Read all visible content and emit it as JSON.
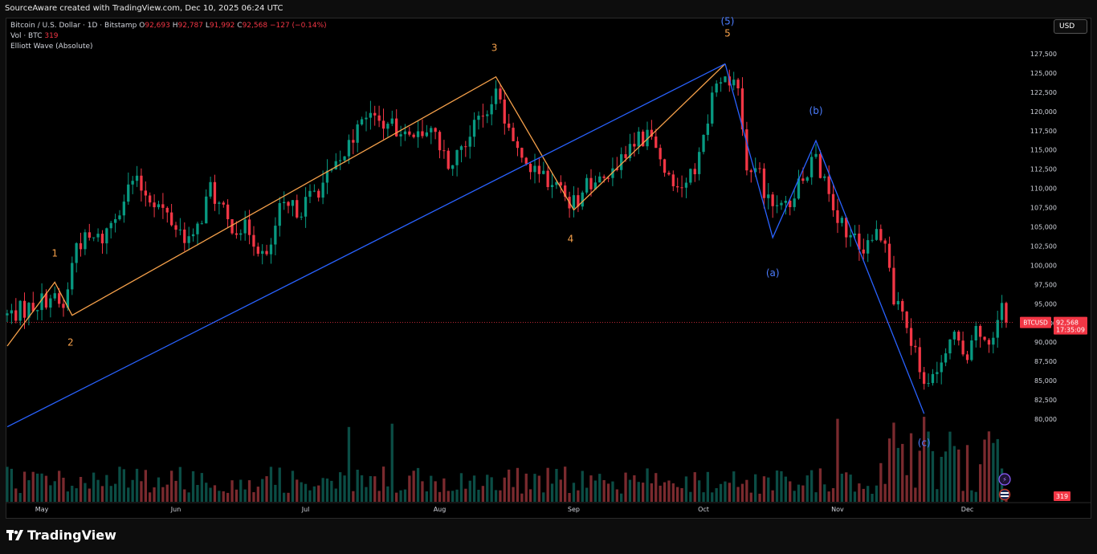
{
  "header": {
    "source_text": "SourceAware created with TradingView.com, Dec 10, 2025 06:24 UTC"
  },
  "legend": {
    "symbol": "Bitcoin / U.S. Dollar · 1D · Bitstamp",
    "open_label": "O",
    "open": "92,693",
    "high_label": "H",
    "high": "92,787",
    "low_label": "L",
    "low": "91,992",
    "close_label": "C",
    "close": "92,568",
    "change": "−127 (−0.14%)",
    "volume_label": "Vol · BTC",
    "volume": "319",
    "indicator": "Elliott Wave (Absolute)"
  },
  "currency_button": "USD",
  "price_tag": {
    "symbol": "BTCUSD",
    "price": "92,568",
    "countdown": "17:35:09"
  },
  "volume_tag": "319",
  "footer": {
    "brand": "TradingView"
  },
  "colors": {
    "up": "#089981",
    "down": "#f23645",
    "up_vol": "#0b4d45",
    "down_vol": "#7a2a2e",
    "wave_orange": "#f5a04a",
    "wave_blue": "#2962ff",
    "label_blue": "#4c7dff"
  },
  "chart_data": {
    "type": "candlestick",
    "title": "Bitcoin / U.S. Dollar · 1D · Bitstamp",
    "y_axis": {
      "ticks": [
        80000,
        82500,
        85000,
        87500,
        90000,
        92500,
        95000,
        97500,
        100000,
        102500,
        105000,
        107500,
        110000,
        112500,
        115000,
        117500,
        120000,
        122500,
        125000,
        127500
      ],
      "tick_labels": [
        "80,000",
        "82,500",
        "85,000",
        "87,500",
        "90,000",
        "92,500",
        "95,000",
        "97,500",
        "100,000",
        "102,500",
        "105,000",
        "107,500",
        "110,000",
        "112,500",
        "115,000",
        "117,500",
        "120,000",
        "122,500",
        "125,000",
        "127,500"
      ],
      "range": [
        70000,
        130000
      ],
      "side": "right"
    },
    "x_axis": {
      "labels": [
        "May",
        "Jun",
        "Jul",
        "Aug",
        "Sep",
        "Oct",
        "Nov",
        "Dec"
      ],
      "label_dates": [
        "2025-05-01",
        "2025-06-01",
        "2025-07-01",
        "2025-08-01",
        "2025-09-01",
        "2025-10-01",
        "2025-11-01",
        "2025-12-01"
      ],
      "range": [
        "2025-04-23",
        "2025-12-10"
      ]
    },
    "price_points": [
      [
        "2025-04-23",
        93500
      ],
      [
        "2025-04-28",
        94500
      ],
      [
        "2025-05-03",
        96000
      ],
      [
        "2025-05-06",
        94200
      ],
      [
        "2025-05-09",
        103000
      ],
      [
        "2025-05-15",
        103500
      ],
      [
        "2025-05-22",
        111000
      ],
      [
        "2025-05-27",
        108500
      ],
      [
        "2025-06-01",
        105000
      ],
      [
        "2025-06-05",
        103000
      ],
      [
        "2025-06-09",
        110000
      ],
      [
        "2025-06-13",
        105500
      ],
      [
        "2025-06-18",
        104500
      ],
      [
        "2025-06-22",
        100500
      ],
      [
        "2025-06-25",
        107000
      ],
      [
        "2025-06-30",
        107500
      ],
      [
        "2025-07-03",
        109500
      ],
      [
        "2025-07-09",
        113000
      ],
      [
        "2025-07-14",
        120000
      ],
      [
        "2025-07-20",
        118000
      ],
      [
        "2025-07-25",
        117000
      ],
      [
        "2025-07-30",
        118000
      ],
      [
        "2025-08-03",
        113500
      ],
      [
        "2025-08-08",
        117500
      ],
      [
        "2025-08-14",
        122000
      ],
      [
        "2025-08-18",
        116000
      ],
      [
        "2025-08-22",
        113000
      ],
      [
        "2025-08-27",
        111000
      ],
      [
        "2025-09-01",
        108000
      ],
      [
        "2025-09-05",
        111000
      ],
      [
        "2025-09-10",
        112000
      ],
      [
        "2025-09-14",
        115500
      ],
      [
        "2025-09-18",
        117000
      ],
      [
        "2025-09-22",
        113000
      ],
      [
        "2025-09-26",
        109500
      ],
      [
        "2025-09-30",
        114000
      ],
      [
        "2025-10-03",
        122000
      ],
      [
        "2025-10-06",
        124800
      ],
      [
        "2025-10-09",
        123000
      ],
      [
        "2025-10-11",
        112000
      ],
      [
        "2025-10-14",
        111500
      ],
      [
        "2025-10-17",
        106500
      ],
      [
        "2025-10-21",
        108500
      ],
      [
        "2025-10-27",
        114500
      ],
      [
        "2025-10-30",
        108500
      ],
      [
        "2025-11-03",
        104000
      ],
      [
        "2025-11-07",
        102500
      ],
      [
        "2025-11-11",
        104500
      ],
      [
        "2025-11-14",
        96000
      ],
      [
        "2025-11-17",
        92500
      ],
      [
        "2025-11-21",
        84500
      ],
      [
        "2025-11-25",
        87500
      ],
      [
        "2025-11-28",
        91500
      ],
      [
        "2025-12-01",
        86500
      ],
      [
        "2025-12-03",
        93000
      ],
      [
        "2025-12-06",
        89500
      ],
      [
        "2025-12-09",
        94000
      ],
      [
        "2025-12-10",
        92568
      ]
    ],
    "volume_spikes": [
      {
        "date": "2025-07-11",
        "level": "high"
      },
      {
        "date": "2025-07-21",
        "level": "high"
      },
      {
        "date": "2025-11-01",
        "level": "high"
      },
      {
        "date": "2025-11-14",
        "level": "high"
      },
      {
        "date": "2025-11-21",
        "level": "high"
      }
    ],
    "elliott_waves": [
      {
        "name": "impulse",
        "color": "orange",
        "points": [
          {
            "date": "2025-04-23",
            "price": 89500,
            "label": ""
          },
          {
            "date": "2025-05-04",
            "price": 97800,
            "label": "1"
          },
          {
            "date": "2025-05-08",
            "price": 93500,
            "label": "2"
          },
          {
            "date": "2025-08-14",
            "price": 124500,
            "label": "3"
          },
          {
            "date": "2025-09-01",
            "price": 107200,
            "label": "4"
          },
          {
            "date": "2025-10-06",
            "price": 126200,
            "label": "5"
          }
        ]
      },
      {
        "name": "degree",
        "color": "blue",
        "points": [
          {
            "date": "2025-04-23",
            "price": 79000,
            "label": ""
          },
          {
            "date": "2025-10-06",
            "price": 126200,
            "label": "(5)"
          }
        ]
      },
      {
        "name": "correction",
        "color": "blue",
        "points": [
          {
            "date": "2025-10-06",
            "price": 126200,
            "label": ""
          },
          {
            "date": "2025-10-17",
            "price": 103600,
            "label": "(a)"
          },
          {
            "date": "2025-10-27",
            "price": 116200,
            "label": "(b)"
          },
          {
            "date": "2025-11-21",
            "price": 80700,
            "label": "(c)"
          }
        ]
      }
    ],
    "last_price": 92568,
    "grid": false,
    "legend_position": "top-left"
  }
}
